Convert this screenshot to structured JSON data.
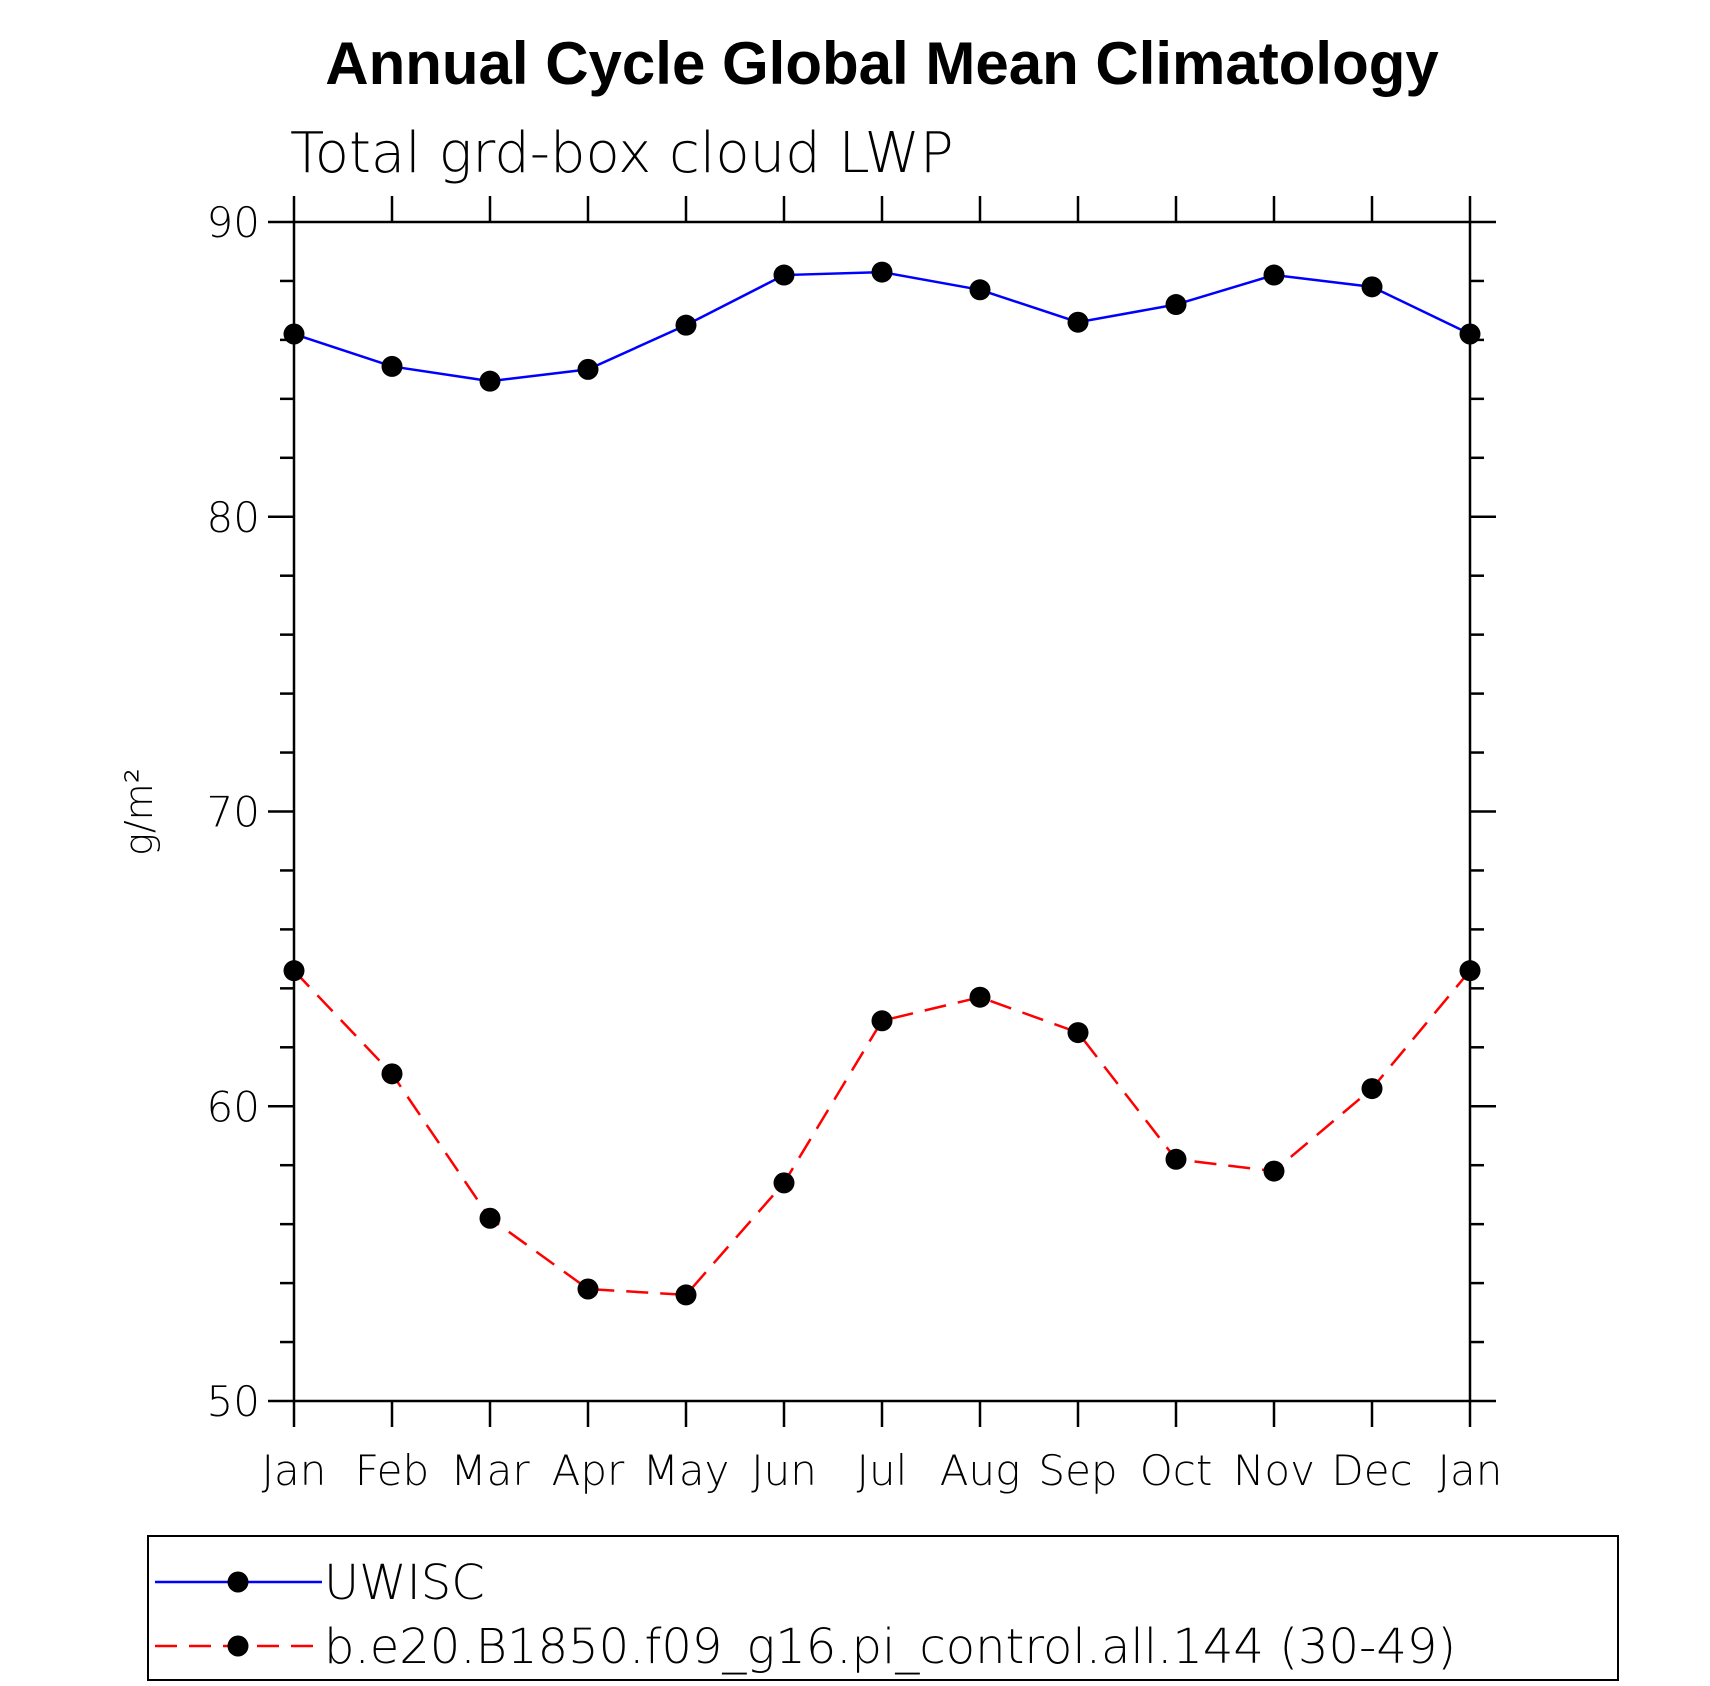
{
  "chart_data": {
    "type": "line",
    "title": "Annual Cycle Global Mean Climatology",
    "subtitle": "Total grd-box cloud LWP",
    "ylabel": "g/m²",
    "xlabel": "",
    "categories": [
      "Jan",
      "Feb",
      "Mar",
      "Apr",
      "May",
      "Jun",
      "Jul",
      "Aug",
      "Sep",
      "Oct",
      "Nov",
      "Dec",
      "Jan"
    ],
    "ylim": [
      50,
      90
    ],
    "yticks": [
      50,
      60,
      70,
      80,
      90
    ],
    "yticks_labels": [
      "50",
      "60",
      "70",
      "80",
      "90"
    ],
    "y_minor_step": 2,
    "grid": false,
    "legend_position": "bottom",
    "series": [
      {
        "name": "UWISC",
        "color": "#0000ff",
        "dash": "solid",
        "marker": "filled-circle",
        "values": [
          86.2,
          85.1,
          84.6,
          85.0,
          86.5,
          88.2,
          88.3,
          87.7,
          86.6,
          87.2,
          88.2,
          87.8,
          86.2
        ]
      },
      {
        "name": "b.e20.B1850.f09_g16.pi_control.all.144 (30-49)",
        "color": "#ff0000",
        "dash": "dashed",
        "marker": "filled-circle",
        "values": [
          64.6,
          61.1,
          56.2,
          53.8,
          53.6,
          57.4,
          62.9,
          63.7,
          62.5,
          58.2,
          57.8,
          60.6,
          64.6
        ]
      }
    ]
  }
}
